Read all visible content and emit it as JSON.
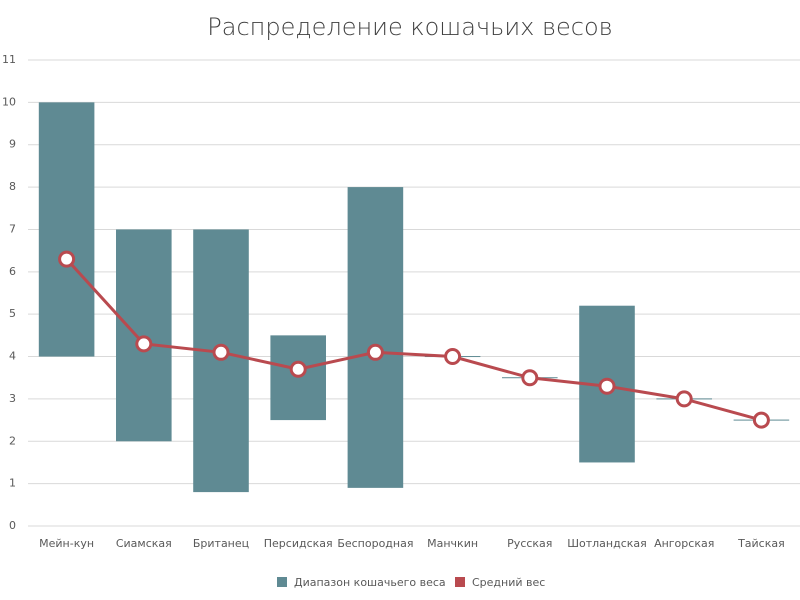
{
  "chart_data": {
    "type": "bar",
    "title": "Распределение кошачьих весов",
    "categories": [
      "Мейн-кун",
      "Сиамская",
      "Британец",
      "Персидская",
      "Беспородная",
      "Манчкин",
      "Русская",
      "Шотландская",
      "Ангорская",
      "Тайская"
    ],
    "series": [
      {
        "name": "Диапазон кошачьего веса",
        "type": "range-bar",
        "color": "#5f8a93",
        "low": [
          4,
          2,
          0.8,
          2.5,
          0.9,
          4,
          3.5,
          1.5,
          3,
          2.5
        ],
        "high": [
          10,
          7,
          7,
          4.5,
          8,
          4,
          3.5,
          5.2,
          3,
          2.5
        ]
      },
      {
        "name": "Средний вес",
        "type": "line",
        "color": "#b94a4f",
        "values": [
          6.3,
          4.3,
          4.1,
          3.7,
          4.1,
          4.0,
          3.5,
          3.3,
          3.0,
          2.5
        ]
      }
    ],
    "ylim": [
      0,
      11
    ],
    "yticks": [
      0,
      1,
      2,
      3,
      4,
      5,
      6,
      7,
      8,
      9,
      10,
      11
    ],
    "grid": true,
    "legend": "bottom"
  }
}
